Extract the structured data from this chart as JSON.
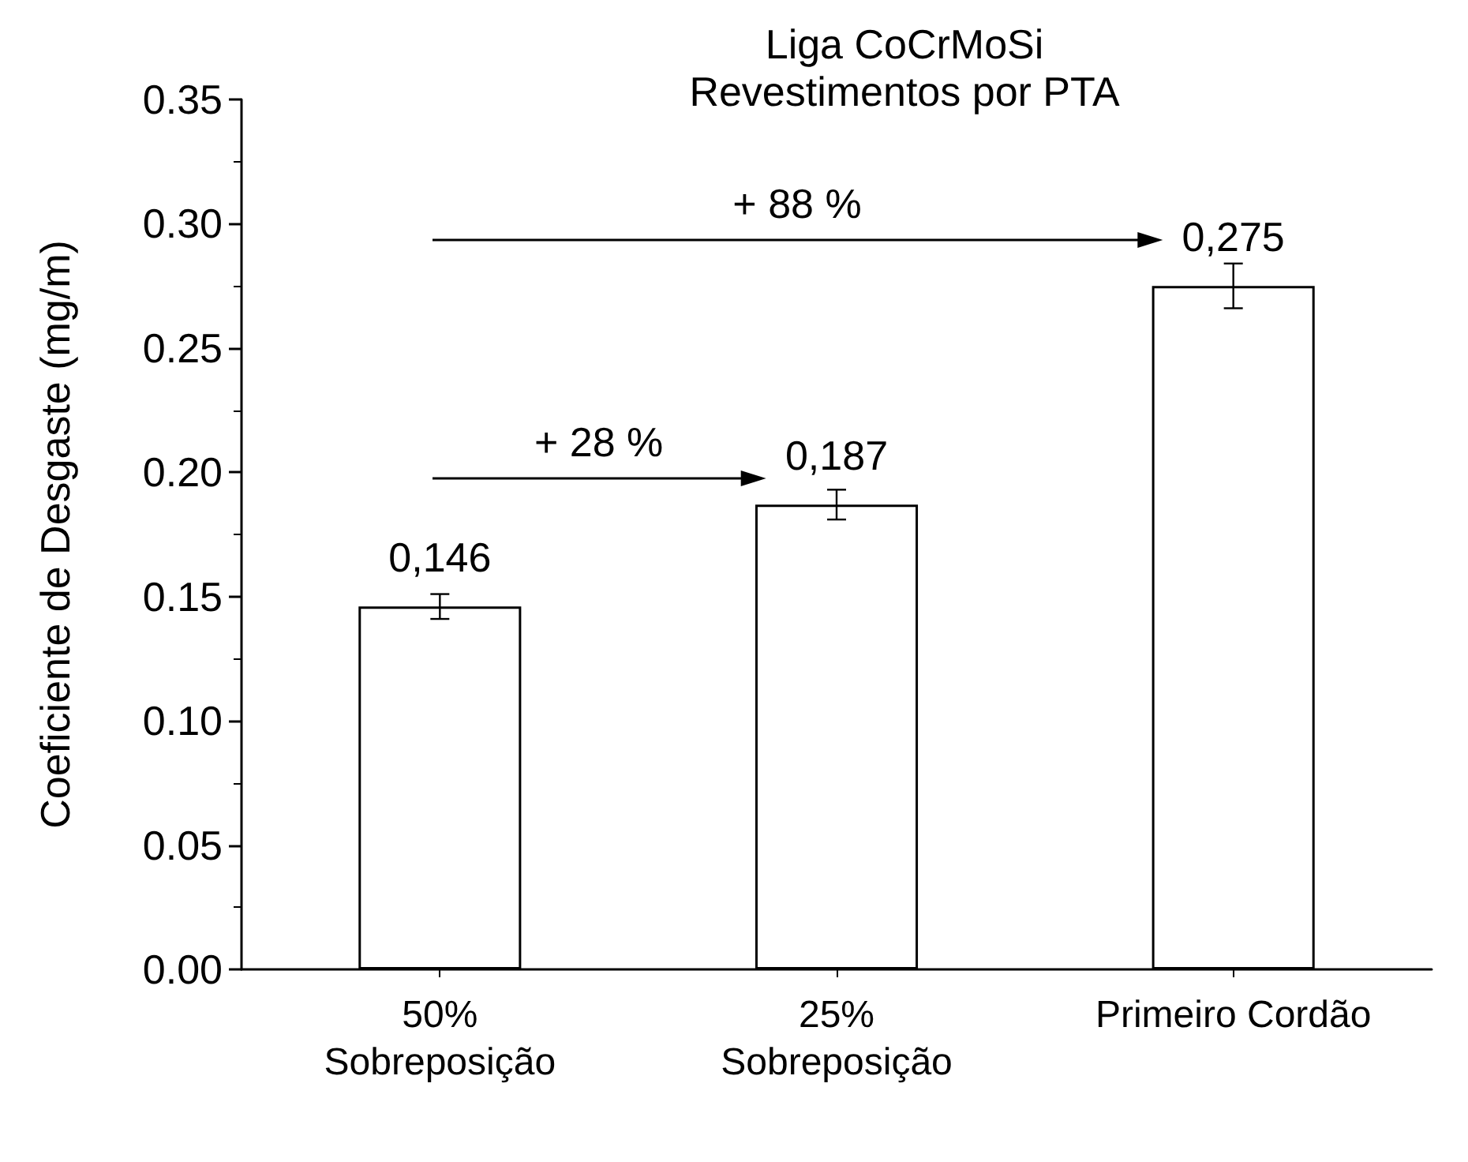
{
  "chart_data": {
    "type": "bar",
    "title": "Liga CoCrMoSi",
    "subtitle": "Revestimentos por PTA",
    "ylabel": "Coeficiente de Desgaste (mg/m)",
    "categories": [
      "50%\nSobreposição",
      "25%\nSobreposição",
      "Primeiro Cordão"
    ],
    "values": [
      0.146,
      0.187,
      0.275
    ],
    "color": "#ffffff",
    "errors": [
      0.005,
      0.006,
      0.009
    ],
    "value_labels": [
      "0,146",
      "0,187",
      "0,275"
    ],
    "ylim": [
      0,
      0.35
    ],
    "yticks": [
      {
        "value": 0,
        "label": "0.00"
      },
      {
        "value": 0.05,
        "label": "0.05"
      },
      {
        "value": 0.1,
        "label": "0.10"
      },
      {
        "value": 0.15,
        "label": "0.15"
      },
      {
        "value": 0.2,
        "label": "0.20"
      },
      {
        "value": 0.25,
        "label": "0.25"
      },
      {
        "value": 0.3,
        "label": "0.30"
      },
      {
        "value": 0.35,
        "label": "0.35"
      }
    ],
    "annotations": [
      "+ 28 %",
      "+ 88 %"
    ],
    "grid": false
  }
}
